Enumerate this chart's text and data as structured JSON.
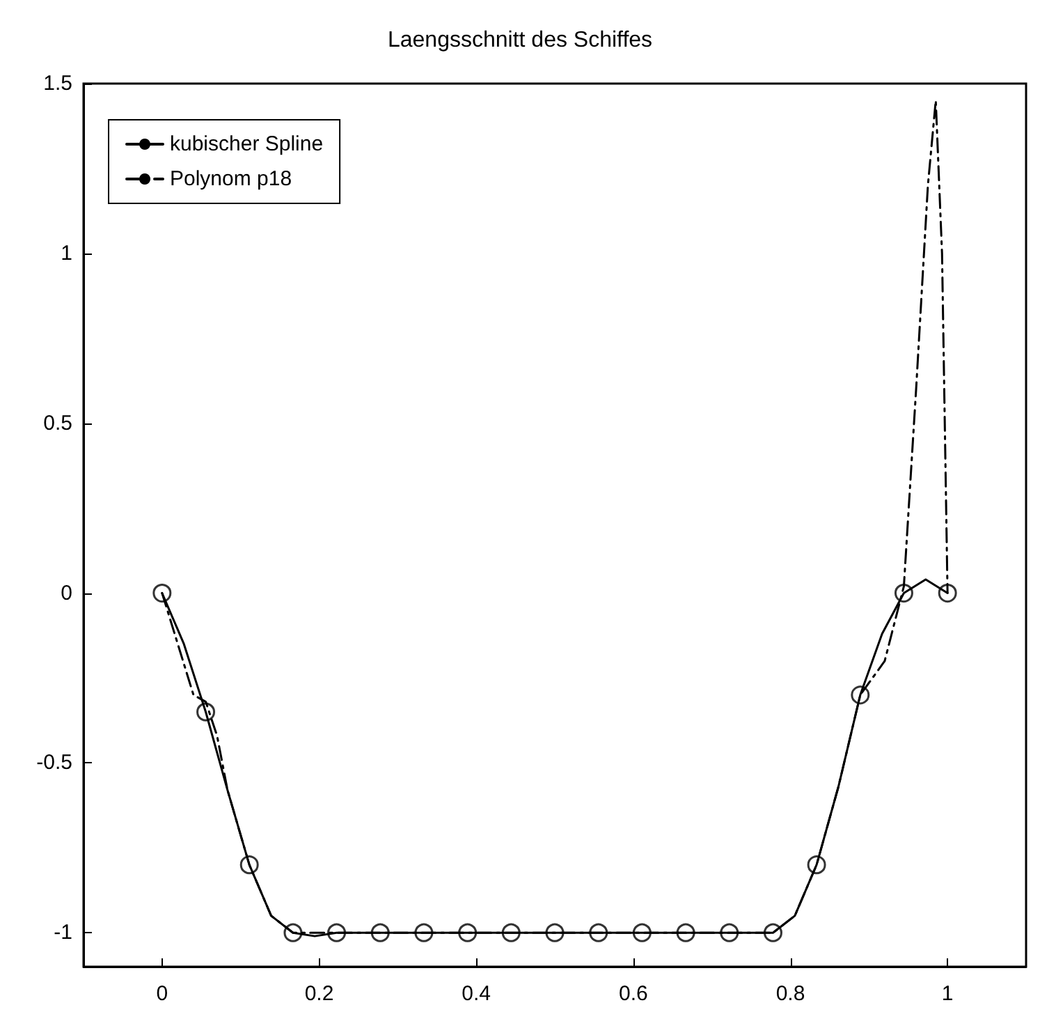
{
  "chart_data": {
    "type": "line",
    "title": "Laengsschnitt des Schiffes",
    "xlim": [
      -0.1,
      1.1
    ],
    "xticks": [
      0,
      0.2,
      0.4,
      0.6,
      0.8,
      1
    ],
    "ylim": [
      -1.1,
      1.5
    ],
    "yticks": [
      -1,
      -0.5,
      0,
      0.5,
      1,
      1.5
    ],
    "grid": false,
    "legend": "top left",
    "series": [
      {
        "name": "kubischer Spline",
        "color": "#000000",
        "line_style": "solid",
        "marker": "none",
        "x": [
          0,
          0.0278,
          0.0556,
          0.0833,
          0.1111,
          0.1389,
          0.1667,
          0.1944,
          0.2222,
          0.3333,
          0.4444,
          0.5556,
          0.6667,
          0.7778,
          0.8056,
          0.8333,
          0.8611,
          0.8889,
          0.9167,
          0.9444,
          0.9722,
          1
        ],
        "values": [
          0,
          -0.15,
          -0.35,
          -0.58,
          -0.8,
          -0.95,
          -1.0,
          -1.01,
          -1.0,
          -1.0,
          -1.0,
          -1.0,
          -1.0,
          -1.0,
          -0.95,
          -0.8,
          -0.57,
          -0.3,
          -0.12,
          0,
          0.04,
          0
        ]
      },
      {
        "name": "Polynom p18",
        "color": "#000000",
        "line_style": "dashed",
        "marker": "none",
        "x": [
          0,
          0.02,
          0.04,
          0.0556,
          0.07,
          0.0833,
          0.1111,
          0.1389,
          0.1667,
          0.2222,
          0.3333,
          0.4444,
          0.5556,
          0.6667,
          0.7778,
          0.8056,
          0.8333,
          0.8611,
          0.8889,
          0.92,
          0.9444,
          0.96,
          0.975,
          0.985,
          0.993,
          1
        ],
        "values": [
          0,
          -0.15,
          -0.3,
          -0.32,
          -0.42,
          -0.58,
          -0.8,
          -0.95,
          -1.0,
          -1.0,
          -1.0,
          -1.0,
          -1.0,
          -1.0,
          -1.0,
          -0.95,
          -0.8,
          -0.57,
          -0.3,
          -0.2,
          0.02,
          0.6,
          1.2,
          1.45,
          1.0,
          0
        ]
      },
      {
        "type": "scatter",
        "color": "#000000",
        "marker": "circle",
        "x": [
          0,
          0.0556,
          0.1111,
          0.1667,
          0.2222,
          0.2778,
          0.3333,
          0.3889,
          0.4444,
          0.5,
          0.5556,
          0.6111,
          0.6667,
          0.7222,
          0.7778,
          0.8333,
          0.8889,
          0.9444,
          1
        ],
        "values": [
          0,
          -0.35,
          -0.8,
          -1,
          -1,
          -1,
          -1,
          -1,
          -1,
          -1,
          -1,
          -1,
          -1,
          -1,
          -1,
          -0.8,
          -0.3,
          0,
          0
        ]
      }
    ]
  }
}
